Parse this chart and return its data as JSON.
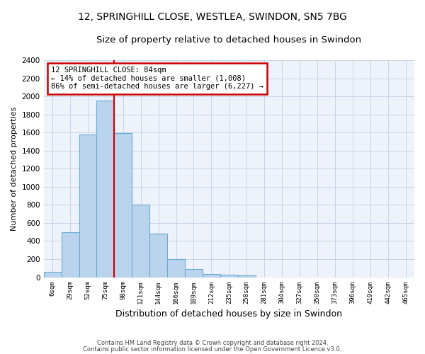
{
  "title1": "12, SPRINGHILL CLOSE, WESTLEA, SWINDON, SN5 7BG",
  "title2": "Size of property relative to detached houses in Swindon",
  "xlabel": "Distribution of detached houses by size in Swindon",
  "ylabel": "Number of detached properties",
  "footnote1": "Contains HM Land Registry data © Crown copyright and database right 2024.",
  "footnote2": "Contains public sector information licensed under the Open Government Licence v3.0.",
  "annotation_line1": "12 SPRINGHILL CLOSE: 84sqm",
  "annotation_line2": "← 14% of detached houses are smaller (1,008)",
  "annotation_line3": "86% of semi-detached houses are larger (6,227) →",
  "bin_labels": [
    "6sqm",
    "29sqm",
    "52sqm",
    "75sqm",
    "98sqm",
    "121sqm",
    "144sqm",
    "166sqm",
    "189sqm",
    "212sqm",
    "235sqm",
    "258sqm",
    "281sqm",
    "304sqm",
    "327sqm",
    "350sqm",
    "373sqm",
    "396sqm",
    "419sqm",
    "442sqm",
    "465sqm"
  ],
  "bar_values": [
    60,
    500,
    1580,
    1950,
    1590,
    800,
    480,
    200,
    90,
    35,
    30,
    20,
    0,
    0,
    0,
    0,
    0,
    0,
    0,
    0,
    0
  ],
  "bar_color": "#bad4ee",
  "bar_edge_color": "#6aabd2",
  "ylim": [
    0,
    2400
  ],
  "yticks": [
    0,
    200,
    400,
    600,
    800,
    1000,
    1200,
    1400,
    1600,
    1800,
    2000,
    2200,
    2400
  ],
  "grid_color": "#c8d4e8",
  "bg_color": "#eef2fa",
  "red_line_color": "#cc0000",
  "annotation_box_color": "#cc0000",
  "title1_fontsize": 10,
  "title2_fontsize": 9.5,
  "xlabel_fontsize": 9,
  "ylabel_fontsize": 8
}
